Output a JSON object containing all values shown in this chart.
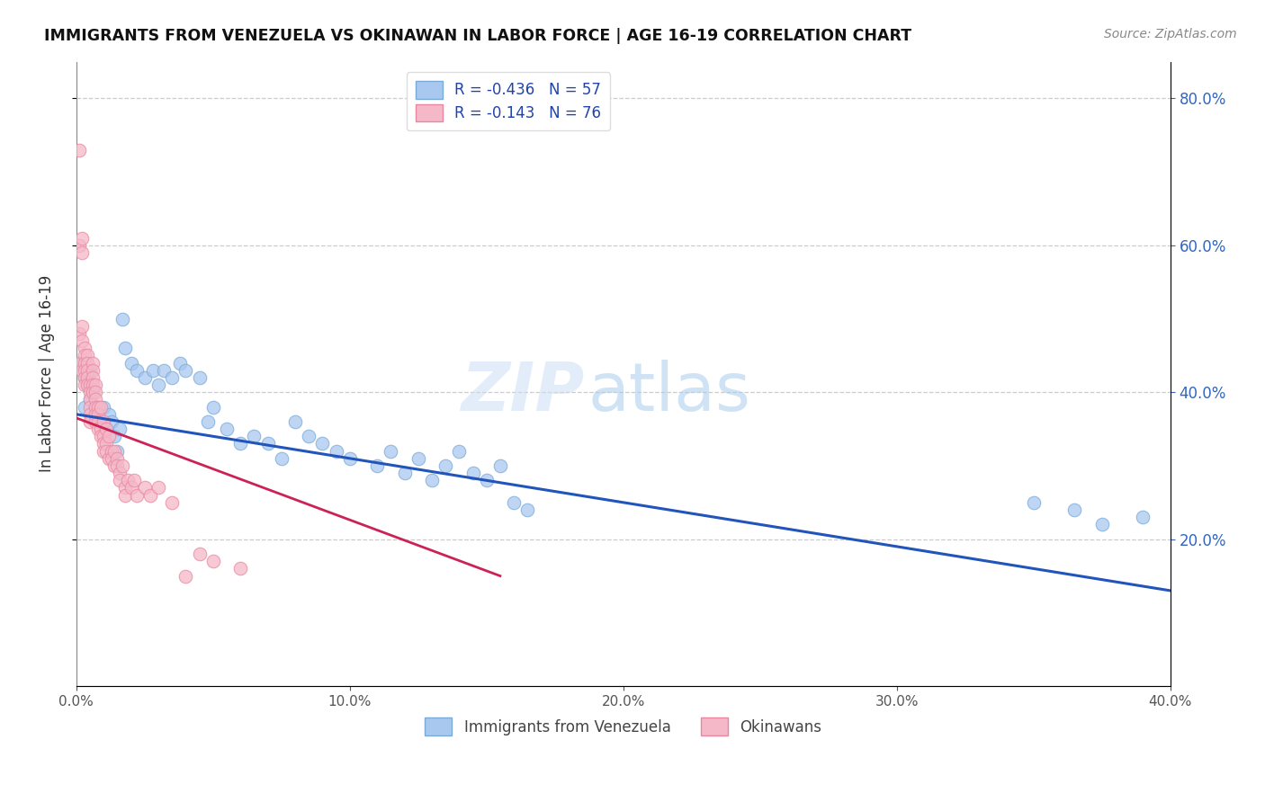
{
  "title": "IMMIGRANTS FROM VENEZUELA VS OKINAWAN IN LABOR FORCE | AGE 16-19 CORRELATION CHART",
  "source": "Source: ZipAtlas.com",
  "ylabel_left": "In Labor Force | Age 16-19",
  "x_min": 0.0,
  "x_max": 0.4,
  "y_min": 0.0,
  "y_max": 0.85,
  "y_ticks": [
    0.2,
    0.4,
    0.6,
    0.8
  ],
  "x_ticks": [
    0.0,
    0.1,
    0.2,
    0.3,
    0.4
  ],
  "blue_color": "#a8c8f0",
  "blue_edge": "#7aaad8",
  "pink_color": "#f5b8c8",
  "pink_edge": "#e888a0",
  "blue_line_color": "#2255bb",
  "pink_line_color": "#cc2255",
  "legend_label_blue": "R = -0.436   N = 57",
  "legend_label_pink": "R = -0.143   N = 76",
  "legend_label_blue_bottom": "Immigrants from Venezuela",
  "legend_label_pink_bottom": "Okinawans",
  "watermark_zip": "ZIP",
  "watermark_atlas": "atlas",
  "blue_x": [
    0.002,
    0.003,
    0.003,
    0.004,
    0.005,
    0.005,
    0.006,
    0.007,
    0.008,
    0.009,
    0.01,
    0.011,
    0.012,
    0.013,
    0.014,
    0.015,
    0.016,
    0.017,
    0.018,
    0.02,
    0.022,
    0.025,
    0.028,
    0.03,
    0.032,
    0.035,
    0.038,
    0.04,
    0.045,
    0.048,
    0.05,
    0.055,
    0.06,
    0.065,
    0.07,
    0.075,
    0.08,
    0.085,
    0.09,
    0.095,
    0.1,
    0.11,
    0.115,
    0.12,
    0.125,
    0.13,
    0.135,
    0.14,
    0.145,
    0.15,
    0.155,
    0.16,
    0.165,
    0.35,
    0.365,
    0.375,
    0.39
  ],
  "blue_y": [
    0.44,
    0.42,
    0.38,
    0.41,
    0.43,
    0.39,
    0.4,
    0.38,
    0.37,
    0.36,
    0.38,
    0.35,
    0.37,
    0.36,
    0.34,
    0.32,
    0.35,
    0.5,
    0.46,
    0.44,
    0.43,
    0.42,
    0.43,
    0.41,
    0.43,
    0.42,
    0.44,
    0.43,
    0.42,
    0.36,
    0.38,
    0.35,
    0.33,
    0.34,
    0.33,
    0.31,
    0.36,
    0.34,
    0.33,
    0.32,
    0.31,
    0.3,
    0.32,
    0.29,
    0.31,
    0.28,
    0.3,
    0.32,
    0.29,
    0.28,
    0.3,
    0.25,
    0.24,
    0.25,
    0.24,
    0.22,
    0.23
  ],
  "pink_x": [
    0.001,
    0.001,
    0.001,
    0.001,
    0.002,
    0.002,
    0.002,
    0.002,
    0.002,
    0.003,
    0.003,
    0.003,
    0.003,
    0.003,
    0.003,
    0.004,
    0.004,
    0.004,
    0.004,
    0.004,
    0.005,
    0.005,
    0.005,
    0.005,
    0.005,
    0.005,
    0.006,
    0.006,
    0.006,
    0.006,
    0.006,
    0.007,
    0.007,
    0.007,
    0.007,
    0.007,
    0.007,
    0.008,
    0.008,
    0.008,
    0.008,
    0.009,
    0.009,
    0.009,
    0.01,
    0.01,
    0.01,
    0.01,
    0.011,
    0.011,
    0.011,
    0.012,
    0.012,
    0.013,
    0.013,
    0.014,
    0.014,
    0.015,
    0.015,
    0.016,
    0.016,
    0.017,
    0.018,
    0.018,
    0.019,
    0.02,
    0.021,
    0.022,
    0.025,
    0.027,
    0.03,
    0.035,
    0.04,
    0.045,
    0.05,
    0.06
  ],
  "pink_y": [
    0.73,
    0.6,
    0.48,
    0.44,
    0.61,
    0.59,
    0.49,
    0.47,
    0.43,
    0.46,
    0.45,
    0.44,
    0.43,
    0.42,
    0.41,
    0.45,
    0.44,
    0.43,
    0.42,
    0.41,
    0.41,
    0.4,
    0.39,
    0.38,
    0.37,
    0.36,
    0.44,
    0.43,
    0.42,
    0.41,
    0.4,
    0.41,
    0.4,
    0.39,
    0.38,
    0.37,
    0.36,
    0.38,
    0.37,
    0.36,
    0.35,
    0.38,
    0.35,
    0.34,
    0.36,
    0.34,
    0.33,
    0.32,
    0.35,
    0.33,
    0.32,
    0.34,
    0.31,
    0.32,
    0.31,
    0.32,
    0.3,
    0.31,
    0.3,
    0.29,
    0.28,
    0.3,
    0.27,
    0.26,
    0.28,
    0.27,
    0.28,
    0.26,
    0.27,
    0.26,
    0.27,
    0.25,
    0.15,
    0.18,
    0.17,
    0.16
  ],
  "blue_trend_x": [
    0.0,
    0.4
  ],
  "blue_trend_y": [
    0.37,
    0.13
  ],
  "pink_trend_x": [
    0.0,
    0.155
  ],
  "pink_trend_y": [
    0.365,
    0.15
  ]
}
